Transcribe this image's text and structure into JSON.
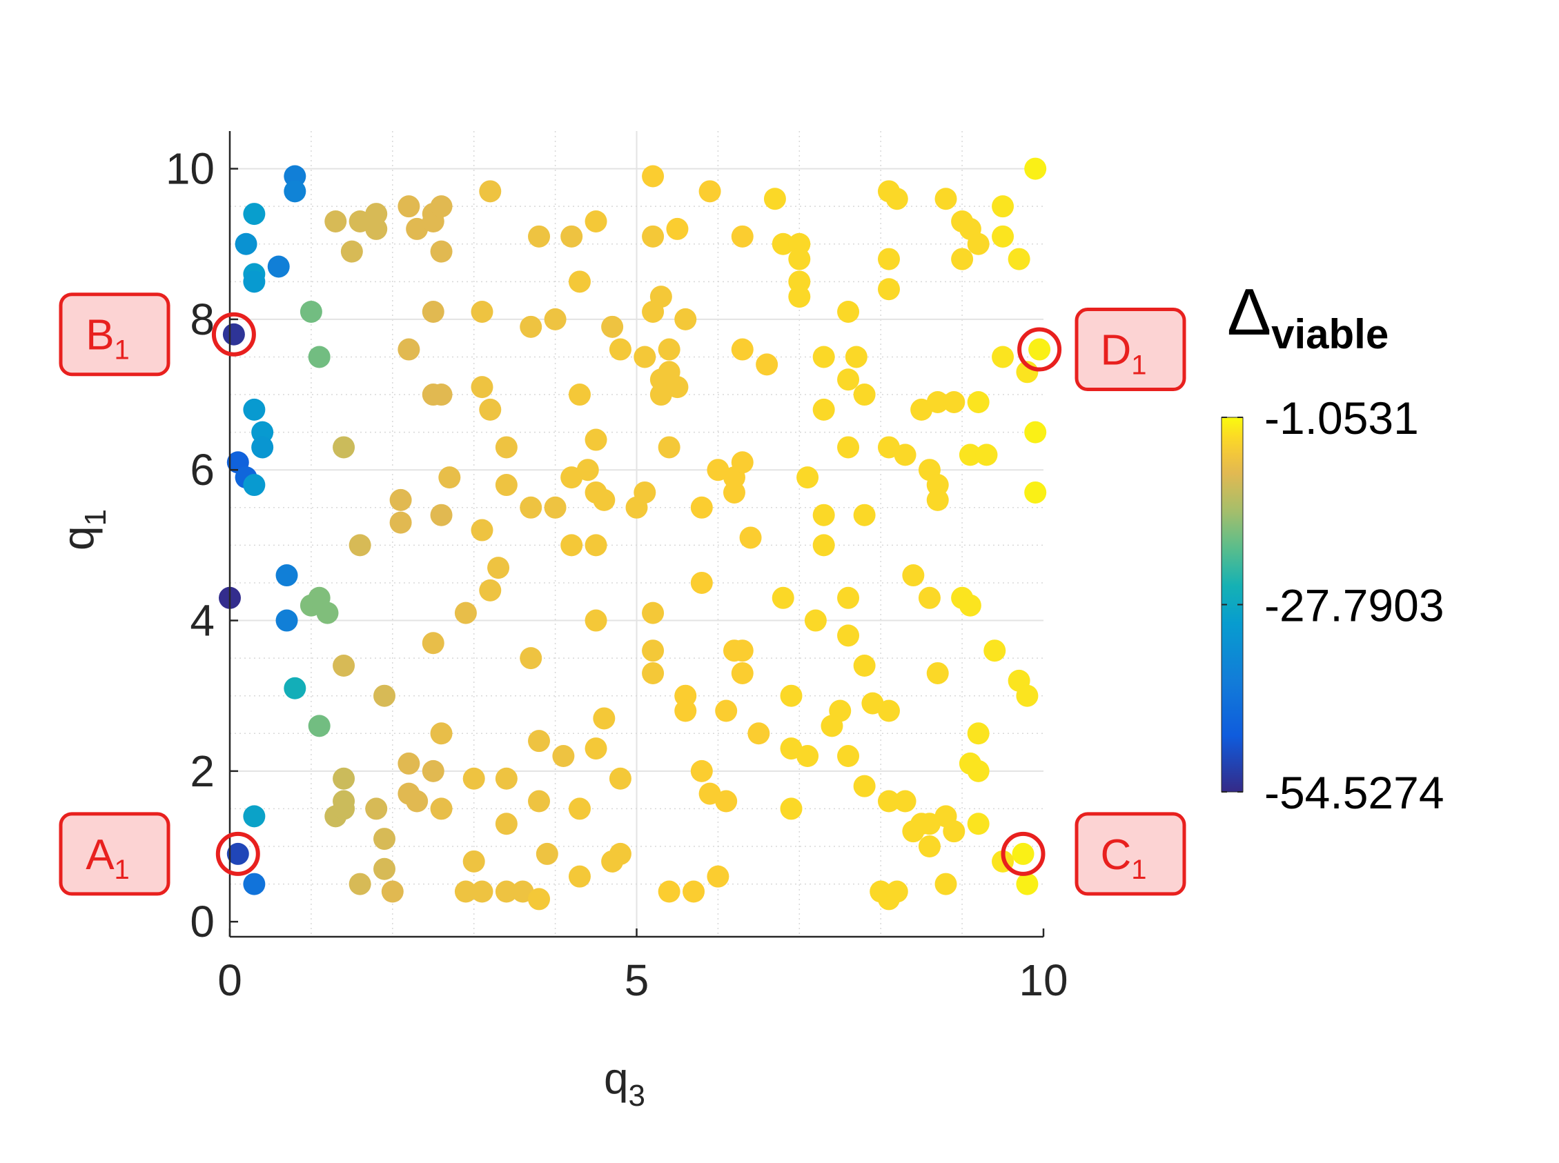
{
  "chart_data": {
    "type": "scatter",
    "xlabel": "q",
    "xlabel_subscript": "3",
    "ylabel": "q",
    "ylabel_subscript": "1",
    "xlim": [
      0,
      10
    ],
    "ylim": [
      -0.2,
      10.5
    ],
    "x_ticks": [
      0,
      5,
      10
    ],
    "y_ticks": [
      0,
      2,
      4,
      6,
      8,
      10
    ],
    "x_tick_labels": [
      "0",
      "5",
      "10"
    ],
    "y_tick_labels": [
      "0",
      "2",
      "4",
      "6",
      "8",
      "10"
    ],
    "grid": true,
    "minor_grid": true,
    "colorbar": {
      "title": "Δ",
      "title_subscript": "viable",
      "min": -54.5274,
      "max": -1.0531,
      "ticks": [
        -1.0531,
        -27.7903,
        -54.5274
      ],
      "tick_labels": [
        "-1.0531",
        "-27.7903",
        "-54.5274"
      ],
      "colormap": "parula"
    },
    "highlighted_points": [
      {
        "label": "A",
        "label_subscript": "1",
        "x": 0.1,
        "y": 0.9,
        "box_side": "left"
      },
      {
        "label": "B",
        "label_subscript": "1",
        "x": 0.05,
        "y": 7.8,
        "box_side": "left"
      },
      {
        "label": "C",
        "label_subscript": "1",
        "x": 9.75,
        "y": 0.9,
        "box_side": "right"
      },
      {
        "label": "D",
        "label_subscript": "1",
        "x": 9.95,
        "y": 7.6,
        "box_side": "right"
      }
    ],
    "highlight_color": "#e8201e",
    "highlight_fill": "#fcd3d3",
    "points": [
      [
        0.8,
        9.9,
        -38
      ],
      [
        0.8,
        9.7,
        -37
      ],
      [
        1.6,
        9.3,
        -10
      ],
      [
        1.8,
        9.4,
        -10
      ],
      [
        2.2,
        9.5,
        -9
      ],
      [
        1.3,
        9.3,
        -10
      ],
      [
        1.5,
        8.9,
        -10
      ],
      [
        1.8,
        9.2,
        -10
      ],
      [
        2.3,
        9.2,
        -9
      ],
      [
        2.5,
        9.4,
        -9
      ],
      [
        2.5,
        9.3,
        -9
      ],
      [
        2.6,
        9.5,
        -9
      ],
      [
        2.6,
        8.9,
        -9
      ],
      [
        3.2,
        9.7,
        -7
      ],
      [
        5.2,
        9.9,
        -5
      ],
      [
        5.9,
        9.7,
        -5
      ],
      [
        6.7,
        9.6,
        -4
      ],
      [
        8.1,
        9.7,
        -4
      ],
      [
        8.2,
        9.6,
        -4
      ],
      [
        8.8,
        9.6,
        -4
      ],
      [
        9.9,
        10.0,
        -2
      ],
      [
        3.8,
        9.1,
        -7
      ],
      [
        4.2,
        9.1,
        -7
      ],
      [
        4.5,
        9.3,
        -6
      ],
      [
        5.2,
        9.1,
        -6
      ],
      [
        5.5,
        9.2,
        -5
      ],
      [
        6.3,
        9.1,
        -5
      ],
      [
        6.8,
        9.0,
        -4
      ],
      [
        7.0,
        9.0,
        -4
      ],
      [
        7.0,
        8.8,
        -4
      ],
      [
        8.1,
        8.8,
        -4
      ],
      [
        9.0,
        9.3,
        -4
      ],
      [
        9.1,
        9.2,
        -4
      ],
      [
        9.2,
        9.0,
        -4
      ],
      [
        9.0,
        8.8,
        -4
      ],
      [
        9.5,
        9.5,
        -3
      ],
      [
        9.5,
        9.1,
        -3
      ],
      [
        9.7,
        8.8,
        -3
      ],
      [
        4.3,
        8.5,
        -6
      ],
      [
        5.3,
        8.3,
        -6
      ],
      [
        5.2,
        8.1,
        -6
      ],
      [
        5.6,
        8.0,
        -6
      ],
      [
        7.0,
        8.5,
        -4
      ],
      [
        7.0,
        8.3,
        -4
      ],
      [
        8.1,
        8.4,
        -4
      ],
      [
        7.6,
        8.1,
        -4
      ],
      [
        1.0,
        8.1,
        -18
      ],
      [
        1.1,
        7.5,
        -18
      ],
      [
        2.2,
        7.6,
        -9
      ],
      [
        2.5,
        8.1,
        -9
      ],
      [
        3.1,
        8.1,
        -7
      ],
      [
        3.7,
        7.9,
        -7
      ],
      [
        4.0,
        8.0,
        -7
      ],
      [
        4.7,
        7.9,
        -7
      ],
      [
        4.8,
        7.6,
        -6
      ],
      [
        5.1,
        7.5,
        -6
      ],
      [
        5.3,
        7.2,
        -6
      ],
      [
        5.4,
        7.6,
        -6
      ],
      [
        5.4,
        7.3,
        -6
      ],
      [
        5.3,
        7.0,
        -6
      ],
      [
        5.5,
        7.1,
        -6
      ],
      [
        6.3,
        7.6,
        -5
      ],
      [
        6.6,
        7.4,
        -5
      ],
      [
        7.3,
        7.5,
        -4
      ],
      [
        7.7,
        7.5,
        -4
      ],
      [
        7.6,
        7.2,
        -4
      ],
      [
        9.5,
        7.5,
        -3
      ],
      [
        9.8,
        7.3,
        -3
      ],
      [
        9.95,
        7.6,
        -2
      ],
      [
        3.1,
        7.1,
        -7
      ],
      [
        3.2,
        6.8,
        -7
      ],
      [
        2.5,
        7.0,
        -9
      ],
      [
        2.6,
        7.0,
        -9
      ],
      [
        4.3,
        7.0,
        -6
      ],
      [
        7.3,
        6.8,
        -4
      ],
      [
        7.8,
        7.0,
        -4
      ],
      [
        8.5,
        6.8,
        -4
      ],
      [
        8.7,
        6.9,
        -4
      ],
      [
        8.9,
        6.9,
        -4
      ],
      [
        9.2,
        6.9,
        -3
      ],
      [
        9.9,
        6.5,
        -2
      ],
      [
        1.4,
        6.3,
        -11
      ],
      [
        3.4,
        6.3,
        -7
      ],
      [
        4.5,
        6.4,
        -6
      ],
      [
        5.4,
        6.3,
        -6
      ],
      [
        7.6,
        6.3,
        -4
      ],
      [
        8.1,
        6.3,
        -4
      ],
      [
        8.3,
        6.2,
        -4
      ],
      [
        9.1,
        6.2,
        -3
      ],
      [
        9.3,
        6.2,
        -3
      ],
      [
        2.7,
        5.9,
        -8
      ],
      [
        3.4,
        5.8,
        -7
      ],
      [
        4.2,
        5.9,
        -6
      ],
      [
        4.4,
        6.0,
        -6
      ],
      [
        4.5,
        5.7,
        -6
      ],
      [
        4.6,
        5.6,
        -6
      ],
      [
        5.1,
        5.7,
        -6
      ],
      [
        6.0,
        6.0,
        -5
      ],
      [
        6.2,
        5.9,
        -5
      ],
      [
        6.3,
        6.1,
        -5
      ],
      [
        6.2,
        5.7,
        -5
      ],
      [
        7.1,
        5.9,
        -4
      ],
      [
        8.6,
        6.0,
        -4
      ],
      [
        8.7,
        5.8,
        -4
      ],
      [
        8.7,
        5.6,
        -4
      ],
      [
        9.9,
        5.7,
        -2
      ],
      [
        2.1,
        5.6,
        -9
      ],
      [
        2.6,
        5.4,
        -9
      ],
      [
        3.7,
        5.5,
        -7
      ],
      [
        4.0,
        5.5,
        -7
      ],
      [
        5.0,
        5.5,
        -6
      ],
      [
        5.8,
        5.5,
        -5
      ],
      [
        7.3,
        5.4,
        -4
      ],
      [
        7.8,
        5.4,
        -4
      ],
      [
        1.6,
        5.0,
        -10
      ],
      [
        2.1,
        5.3,
        -9
      ],
      [
        3.1,
        5.2,
        -7
      ],
      [
        4.2,
        5.0,
        -6
      ],
      [
        4.5,
        5.0,
        -6
      ],
      [
        6.4,
        5.1,
        -5
      ],
      [
        7.3,
        5.0,
        -4
      ],
      [
        3.3,
        4.7,
        -7
      ],
      [
        3.2,
        4.4,
        -7
      ],
      [
        2.9,
        4.1,
        -8
      ],
      [
        4.5,
        4.0,
        -6
      ],
      [
        5.2,
        4.1,
        -6
      ],
      [
        5.8,
        4.5,
        -5
      ],
      [
        6.8,
        4.3,
        -4
      ],
      [
        7.2,
        4.0,
        -4
      ],
      [
        7.6,
        4.3,
        -4
      ],
      [
        8.4,
        4.6,
        -4
      ],
      [
        8.6,
        4.3,
        -4
      ],
      [
        9.0,
        4.3,
        -3
      ],
      [
        9.1,
        4.2,
        -3
      ],
      [
        2.5,
        3.7,
        -8
      ],
      [
        1.4,
        3.4,
        -10
      ],
      [
        1.9,
        3.0,
        -10
      ],
      [
        3.7,
        3.5,
        -7
      ],
      [
        5.2,
        3.6,
        -6
      ],
      [
        5.2,
        3.3,
        -6
      ],
      [
        6.2,
        3.6,
        -5
      ],
      [
        6.3,
        3.6,
        -5
      ],
      [
        6.3,
        3.3,
        -5
      ],
      [
        7.6,
        3.8,
        -4
      ],
      [
        7.8,
        3.4,
        -4
      ],
      [
        8.7,
        3.3,
        -4
      ],
      [
        9.4,
        3.6,
        -3
      ],
      [
        9.7,
        3.2,
        -3
      ],
      [
        9.8,
        3.0,
        -3
      ],
      [
        5.6,
        3.0,
        -5
      ],
      [
        5.6,
        2.8,
        -5
      ],
      [
        6.1,
        2.8,
        -5
      ],
      [
        6.9,
        3.0,
        -4
      ],
      [
        7.5,
        2.8,
        -4
      ],
      [
        7.4,
        2.6,
        -4
      ],
      [
        7.9,
        2.9,
        -4
      ],
      [
        8.1,
        2.8,
        -4
      ],
      [
        2.6,
        2.5,
        -8
      ],
      [
        4.6,
        2.7,
        -6
      ],
      [
        6.5,
        2.5,
        -5
      ],
      [
        3.8,
        2.4,
        -7
      ],
      [
        4.1,
        2.2,
        -7
      ],
      [
        4.5,
        2.3,
        -6
      ],
      [
        5.8,
        2.0,
        -5
      ],
      [
        6.9,
        2.3,
        -4
      ],
      [
        7.1,
        2.2,
        -4
      ],
      [
        7.6,
        2.2,
        -4
      ],
      [
        9.2,
        2.5,
        -3
      ],
      [
        9.1,
        2.1,
        -3
      ],
      [
        9.2,
        2.0,
        -3
      ],
      [
        2.2,
        2.1,
        -9
      ],
      [
        2.5,
        2.0,
        -9
      ],
      [
        3.0,
        1.9,
        -7
      ],
      [
        3.4,
        1.9,
        -7
      ],
      [
        4.8,
        1.9,
        -6
      ],
      [
        7.8,
        1.8,
        -4
      ],
      [
        1.4,
        1.9,
        -11
      ],
      [
        1.4,
        1.6,
        -11
      ],
      [
        1.3,
        1.4,
        -11
      ],
      [
        1.4,
        1.5,
        -11
      ],
      [
        1.8,
        1.5,
        -10
      ],
      [
        2.2,
        1.7,
        -9
      ],
      [
        2.3,
        1.6,
        -9
      ],
      [
        2.6,
        1.5,
        -8
      ],
      [
        3.8,
        1.6,
        -7
      ],
      [
        4.3,
        1.5,
        -6
      ],
      [
        5.9,
        1.7,
        -5
      ],
      [
        6.1,
        1.6,
        -5
      ],
      [
        6.9,
        1.5,
        -4
      ],
      [
        8.1,
        1.6,
        -4
      ],
      [
        8.3,
        1.6,
        -4
      ],
      [
        8.4,
        1.2,
        -4
      ],
      [
        8.5,
        1.3,
        -4
      ],
      [
        8.6,
        1.3,
        -4
      ],
      [
        8.8,
        1.4,
        -4
      ],
      [
        8.9,
        1.2,
        -4
      ],
      [
        9.2,
        1.3,
        -3
      ],
      [
        8.6,
        1.0,
        -4
      ],
      [
        1.9,
        1.1,
        -10
      ],
      [
        3.4,
        1.3,
        -7
      ],
      [
        3.0,
        0.8,
        -7
      ],
      [
        3.9,
        0.9,
        -7
      ],
      [
        4.8,
        0.9,
        -6
      ],
      [
        4.7,
        0.8,
        -6
      ],
      [
        1.6,
        0.5,
        -10
      ],
      [
        1.9,
        0.7,
        -10
      ],
      [
        2.0,
        0.4,
        -9
      ],
      [
        2.9,
        0.4,
        -7
      ],
      [
        3.1,
        0.4,
        -7
      ],
      [
        3.4,
        0.4,
        -7
      ],
      [
        3.6,
        0.4,
        -7
      ],
      [
        3.8,
        0.3,
        -6
      ],
      [
        4.3,
        0.6,
        -6
      ],
      [
        5.4,
        0.4,
        -5
      ],
      [
        5.7,
        0.4,
        -5
      ],
      [
        6.0,
        0.6,
        -5
      ],
      [
        8.0,
        0.4,
        -4
      ],
      [
        8.1,
        0.3,
        -4
      ],
      [
        8.2,
        0.4,
        -4
      ],
      [
        8.8,
        0.5,
        -4
      ],
      [
        9.5,
        0.8,
        -3
      ],
      [
        9.75,
        0.9,
        -2
      ],
      [
        9.8,
        0.5,
        -2
      ],
      [
        0.3,
        9.4,
        -30
      ],
      [
        0.2,
        9.0,
        -33
      ],
      [
        0.3,
        8.6,
        -30
      ],
      [
        0.3,
        8.5,
        -31
      ],
      [
        0.6,
        8.7,
        -38
      ],
      [
        0.05,
        7.8,
        -53
      ],
      [
        0.3,
        6.8,
        -31
      ],
      [
        0.4,
        6.5,
        -31
      ],
      [
        0.4,
        6.3,
        -32
      ],
      [
        0.1,
        6.1,
        -45
      ],
      [
        0.2,
        5.9,
        -44
      ],
      [
        0.3,
        5.8,
        -31
      ],
      [
        0.7,
        4.6,
        -38
      ],
      [
        0.0,
        4.3,
        -54
      ],
      [
        0.7,
        4.0,
        -38
      ],
      [
        0.8,
        3.1,
        -26
      ],
      [
        1.0,
        4.2,
        -17
      ],
      [
        1.1,
        4.3,
        -17
      ],
      [
        1.2,
        4.1,
        -17
      ],
      [
        1.1,
        2.6,
        -18
      ],
      [
        0.3,
        1.4,
        -29
      ],
      [
        0.1,
        0.9,
        -50
      ],
      [
        0.3,
        0.5,
        -41
      ]
    ]
  }
}
